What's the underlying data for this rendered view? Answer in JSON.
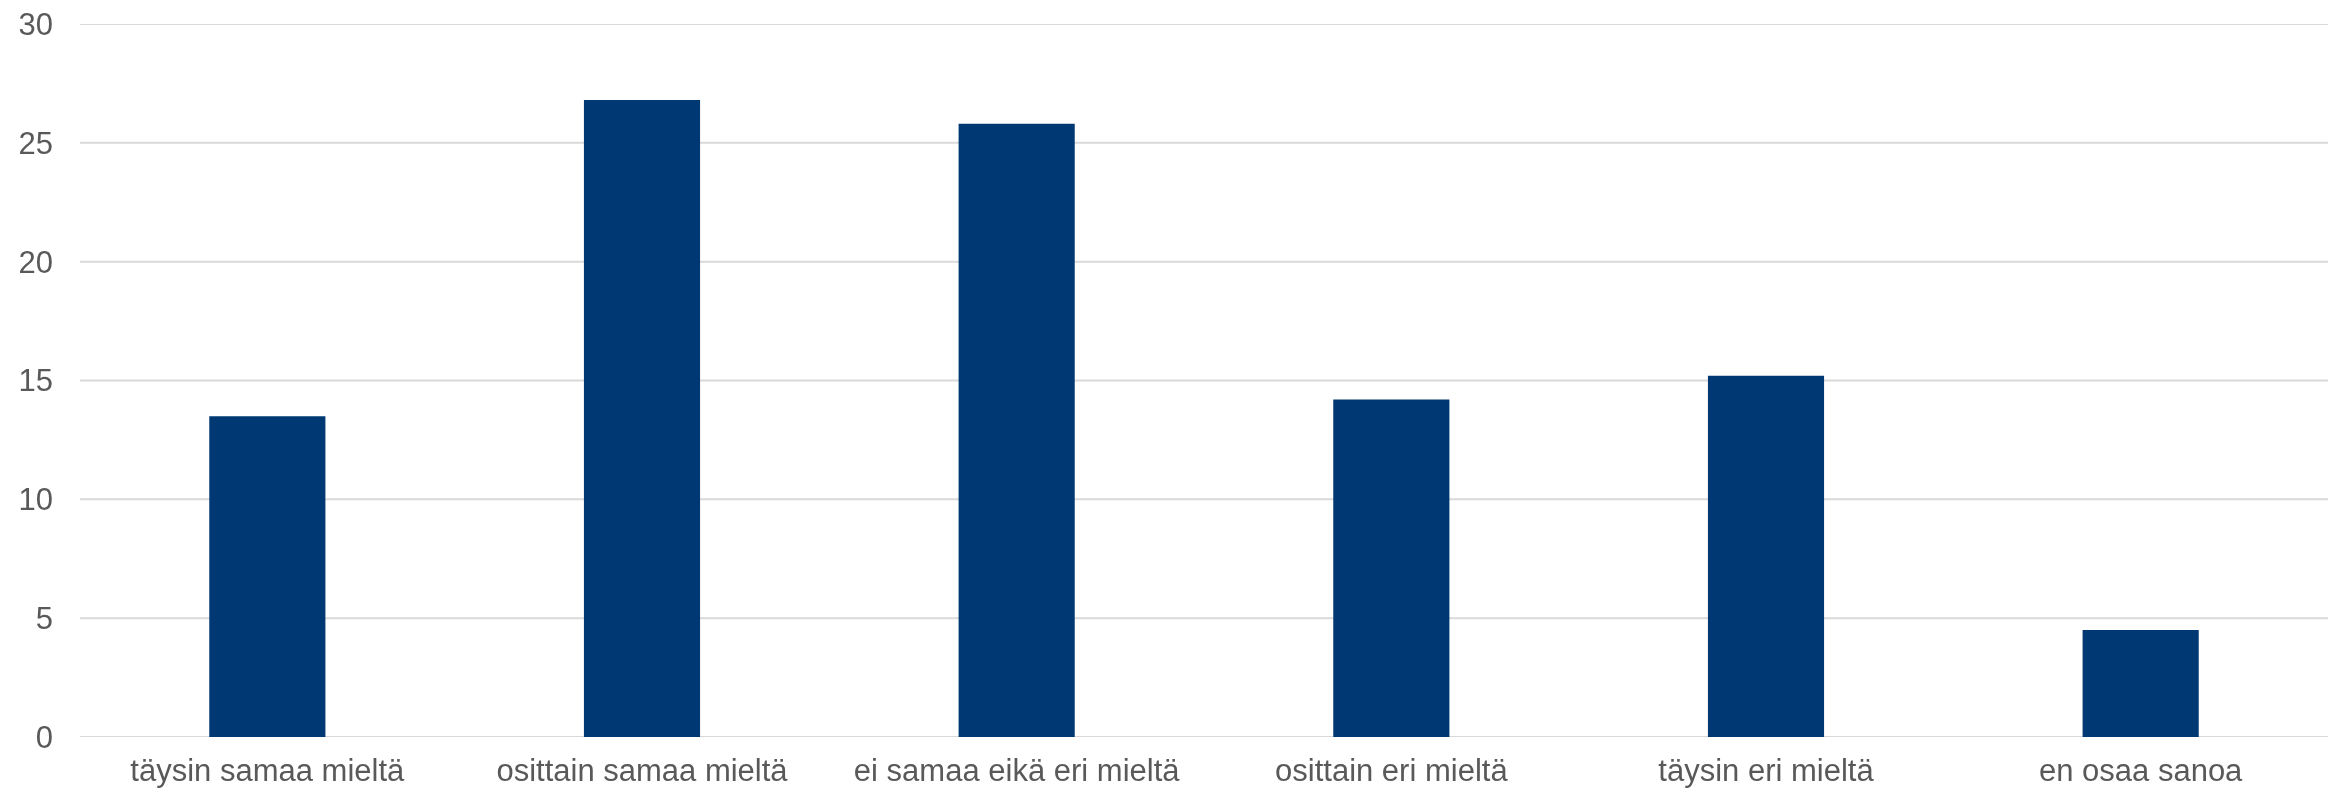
{
  "chart_data": {
    "type": "bar",
    "categories": [
      "täysin samaa mieltä",
      "osittain samaa mieltä",
      "ei samaa eikä eri mieltä",
      "osittain eri mieltä",
      "täysin eri mieltä",
      "en osaa sanoa"
    ],
    "values": [
      13.5,
      26.8,
      25.8,
      14.2,
      15.2,
      4.5
    ],
    "color": "#003873",
    "ylim": [
      0,
      30
    ],
    "yticks": [
      0,
      5,
      10,
      15,
      20,
      25,
      30
    ],
    "grid": "y"
  }
}
